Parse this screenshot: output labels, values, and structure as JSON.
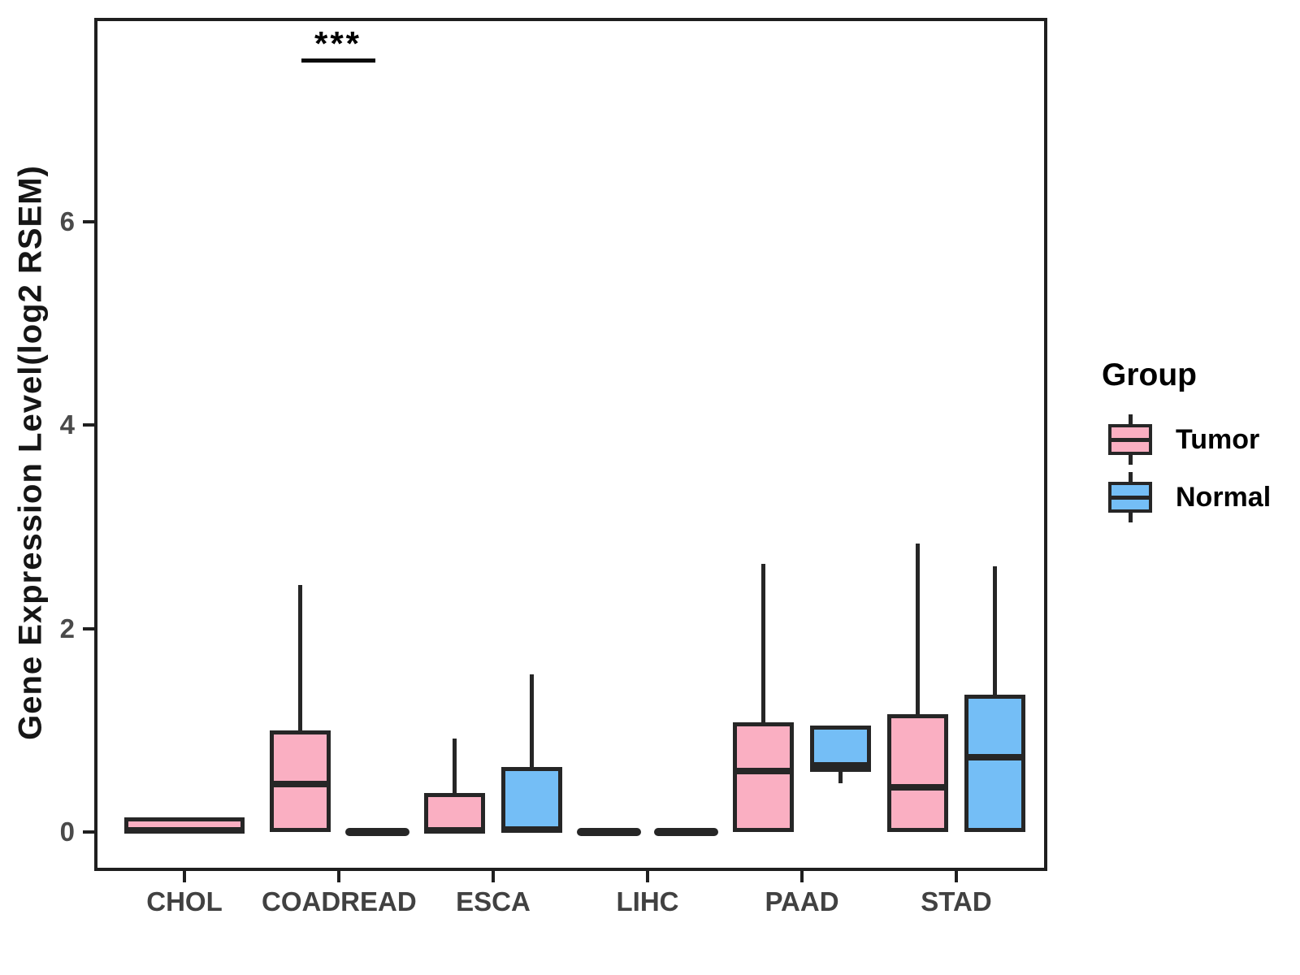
{
  "chart_data": {
    "type": "boxplot",
    "title": "",
    "xlabel": "",
    "ylabel": "Gene Expression Level(log2 RSEM)",
    "categories": [
      "CHOL",
      "COADREAD",
      "ESCA",
      "LIHC",
      "PAAD",
      "STAD"
    ],
    "yticks": [
      0,
      2,
      4,
      6
    ],
    "ylim": [
      -0.38,
      8.0
    ],
    "grid": false,
    "legend_position": "right",
    "groups": [
      {
        "name": "Tumor",
        "fill": "#FAAFC2"
      },
      {
        "name": "Normal",
        "fill": "#74BEF6"
      }
    ],
    "boxes": [
      {
        "category": "CHOL",
        "group": "Tumor",
        "lo": 0,
        "q1": 0,
        "med": 0.02,
        "q3": 0.15,
        "hi": 0.15,
        "flat": false
      },
      {
        "category": "COADREAD",
        "group": "Tumor",
        "lo": 0,
        "q1": 0,
        "med": 0.47,
        "q3": 1.0,
        "hi": 2.43,
        "flat": false
      },
      {
        "category": "COADREAD",
        "group": "Normal",
        "lo": 0,
        "q1": 0,
        "med": 0,
        "q3": 0,
        "hi": 0,
        "flat": true
      },
      {
        "category": "ESCA",
        "group": "Tumor",
        "lo": 0,
        "q1": 0,
        "med": 0.02,
        "q3": 0.39,
        "hi": 0.92,
        "flat": false
      },
      {
        "category": "ESCA",
        "group": "Normal",
        "lo": 0,
        "q1": 0,
        "med": 0.03,
        "q3": 0.64,
        "hi": 1.55,
        "flat": false
      },
      {
        "category": "LIHC",
        "group": "Tumor",
        "lo": 0,
        "q1": 0,
        "med": 0,
        "q3": 0,
        "hi": 0,
        "flat": true
      },
      {
        "category": "LIHC",
        "group": "Normal",
        "lo": 0,
        "q1": 0,
        "med": 0,
        "q3": 0,
        "hi": 0,
        "flat": true
      },
      {
        "category": "PAAD",
        "group": "Tumor",
        "lo": 0,
        "q1": 0,
        "med": 0.6,
        "q3": 1.08,
        "hi": 2.64,
        "flat": false
      },
      {
        "category": "PAAD",
        "group": "Normal",
        "lo": 0.48,
        "q1": 0.59,
        "med": 0.66,
        "q3": 1.05,
        "hi": 1.05,
        "flat": false
      },
      {
        "category": "STAD",
        "group": "Tumor",
        "lo": 0,
        "q1": 0,
        "med": 0.44,
        "q3": 1.16,
        "hi": 2.84,
        "flat": false
      },
      {
        "category": "STAD",
        "group": "Normal",
        "lo": 0,
        "q1": 0,
        "med": 0.74,
        "q3": 1.35,
        "hi": 2.61,
        "flat": false
      }
    ],
    "significance": [
      {
        "category": "COADREAD",
        "label": "***"
      }
    ],
    "legend": {
      "title": "Group",
      "entries": [
        {
          "label": "Tumor",
          "fill": "#FAAFC2"
        },
        {
          "label": "Normal",
          "fill": "#74BEF6"
        }
      ]
    },
    "colors": {
      "box_stroke": "#262626",
      "panel_border": "#1f1f1f",
      "tick_label": "#4a4a4a",
      "axis_title": "#161616",
      "legend_text": "#000000",
      "background": "#ffffff"
    }
  }
}
